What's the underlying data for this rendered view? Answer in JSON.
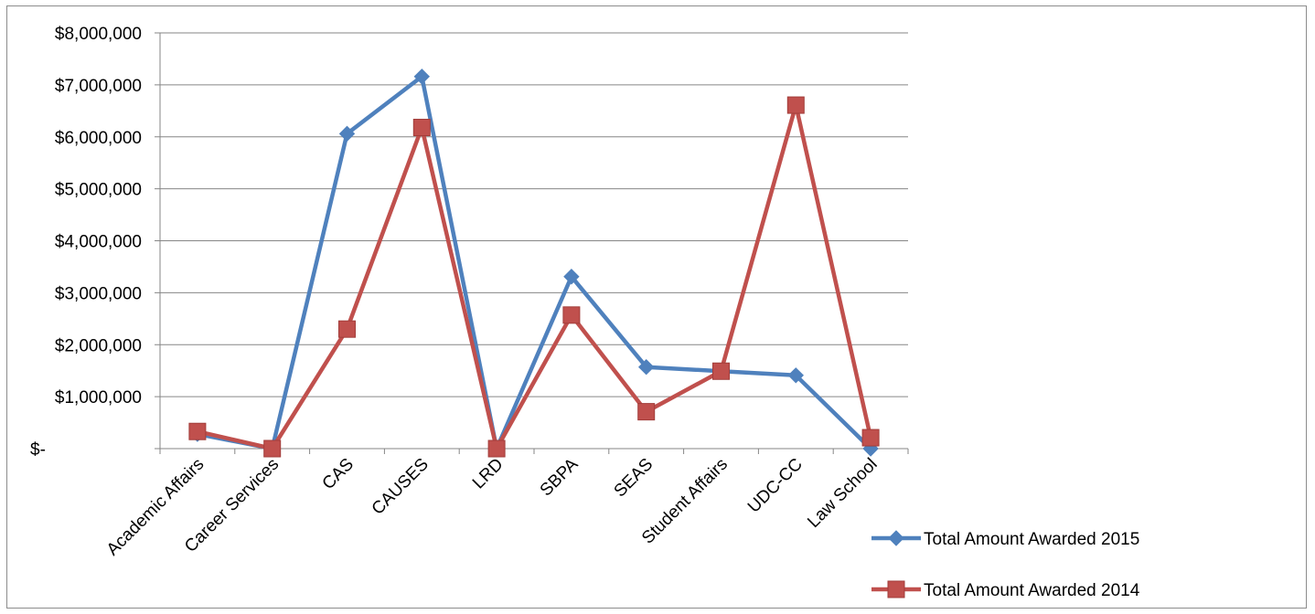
{
  "chart_data": {
    "type": "line",
    "categories": [
      "Academic Affairs",
      "Career Services",
      "CAS",
      "CAUSES",
      "LRD",
      "SBPA",
      "SEAS",
      "Student Affairs",
      "UDC-CC",
      "Law School"
    ],
    "series": [
      {
        "name": "Total Amount Awarded 2015",
        "color": "#4f81bd",
        "marker": "diamond",
        "values": [
          280000,
          0,
          6060000,
          7160000,
          0,
          3310000,
          1570000,
          1490000,
          1410000,
          0
        ]
      },
      {
        "name": "Total Amount Awarded 2014",
        "color": "#c0504d",
        "marker": "square",
        "values": [
          330000,
          0,
          2300000,
          6180000,
          0,
          2570000,
          710000,
          1490000,
          6610000,
          210000
        ]
      }
    ],
    "ylim": [
      0,
      8000000
    ],
    "yticks": [
      {
        "value": 0,
        "label": "$-"
      },
      {
        "value": 1000000,
        "label": "$1,000,000"
      },
      {
        "value": 2000000,
        "label": "$2,000,000"
      },
      {
        "value": 3000000,
        "label": "$3,000,000"
      },
      {
        "value": 4000000,
        "label": "$4,000,000"
      },
      {
        "value": 5000000,
        "label": "$5,000,000"
      },
      {
        "value": 6000000,
        "label": "$6,000,000"
      },
      {
        "value": 7000000,
        "label": "$7,000,000"
      },
      {
        "value": 8000000,
        "label": "$8,000,000"
      }
    ],
    "grid": true,
    "legend_position": "bottom-right",
    "title": "",
    "xlabel": "",
    "ylabel": ""
  }
}
